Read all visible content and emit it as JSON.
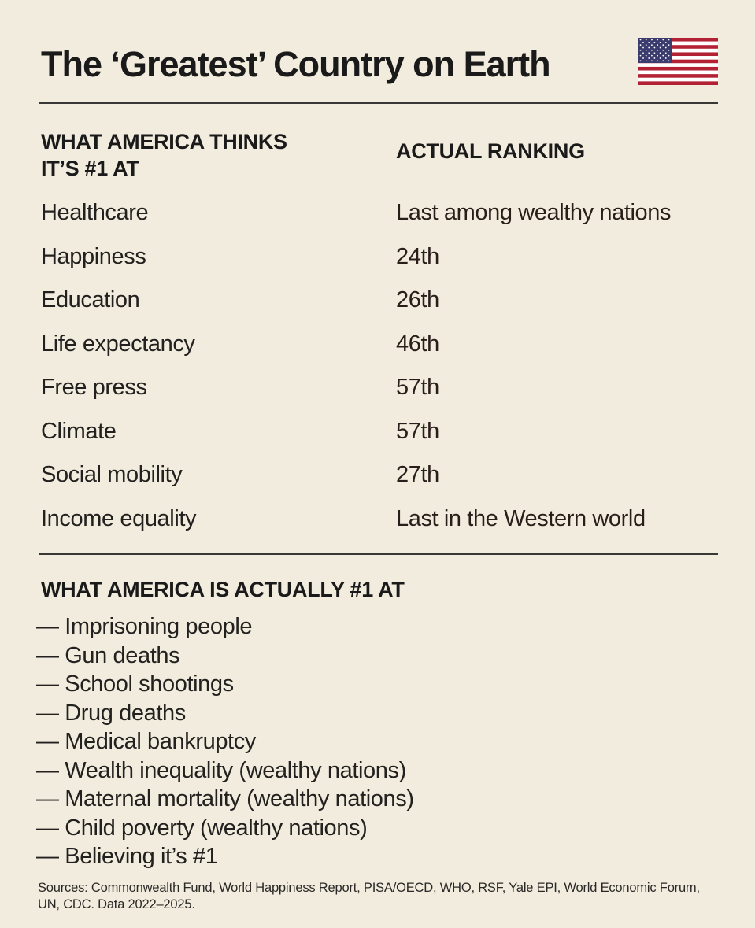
{
  "title": "The ‘Greatest’ Country on Earth",
  "flag_icon": "us-flag-icon",
  "colors": {
    "background": "#f1ecdd",
    "flag_red": "#b22234",
    "flag_blue": "#3c3b6e"
  },
  "table": {
    "left_header": "WHAT AMERICA THINKS IT’S #1 AT",
    "right_header": "ACTUAL RANKING",
    "rows": [
      {
        "category": "Healthcare",
        "ranking": "Last among wealthy nations"
      },
      {
        "category": "Happiness",
        "ranking": "24th"
      },
      {
        "category": "Education",
        "ranking": "26th"
      },
      {
        "category": "Life expectancy",
        "ranking": "46th"
      },
      {
        "category": "Free press",
        "ranking": "57th"
      },
      {
        "category": "Climate",
        "ranking": "57th"
      },
      {
        "category": "Social mobility",
        "ranking": "27th"
      },
      {
        "category": "Income equality",
        "ranking": "Last in the Western world"
      }
    ]
  },
  "actual": {
    "header": "WHAT AMERICA IS ACTUALLY #1 AT",
    "items": [
      "— Imprisoning people",
      "— Gun deaths",
      "— School shootings",
      "— Drug deaths",
      "— Medical bankruptcy",
      "— Wealth inequality (wealthy nations)",
      "— Maternal mortality (wealthy nations)",
      "— Child poverty (wealthy nations)",
      "— Believing it’s #1"
    ]
  },
  "sources": "Sources: Commonwealth Fund, World Happiness Report, PISA/OECD, WHO, RSF, Yale EPI, World Economic Forum, UN, CDC. Data 2022–2025."
}
